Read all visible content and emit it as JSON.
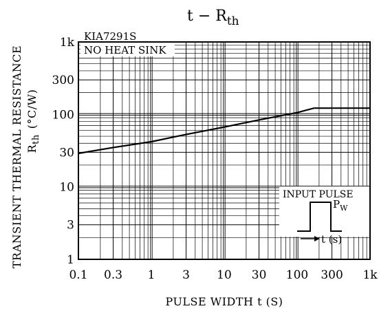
{
  "chart_data": {
    "type": "line",
    "title_main": "t  −  R",
    "title_sub": "th",
    "part_label": "KIA7291S",
    "condition_label": "NO  HEAT  SINK",
    "xlabel": "PULSE  WIDTH  t  (S)",
    "ylabel_line1": "TRANSIENT  THERMAL  RESISTANCE",
    "ylabel_line2_main": "R",
    "ylabel_line2_sub": "th",
    "ylabel_line2_unit": "(°C/W)",
    "x_scale": "log",
    "y_scale": "log",
    "xlim": [
      0.1,
      1000
    ],
    "ylim": [
      1,
      1000
    ],
    "grid": true,
    "x_ticks": [
      {
        "value": 0.1,
        "label": "0.1"
      },
      {
        "value": 0.3,
        "label": "0.3"
      },
      {
        "value": 1,
        "label": "1"
      },
      {
        "value": 3,
        "label": "3"
      },
      {
        "value": 10,
        "label": "10"
      },
      {
        "value": 30,
        "label": "30"
      },
      {
        "value": 100,
        "label": "100"
      },
      {
        "value": 300,
        "label": "300"
      },
      {
        "value": 1000,
        "label": "1k"
      }
    ],
    "y_ticks": [
      {
        "value": 1,
        "label": "1"
      },
      {
        "value": 3,
        "label": "3"
      },
      {
        "value": 10,
        "label": "10"
      },
      {
        "value": 30,
        "label": "30"
      },
      {
        "value": 100,
        "label": "100"
      },
      {
        "value": 300,
        "label": "300"
      },
      {
        "value": 1000,
        "label": "1k"
      }
    ],
    "series": [
      {
        "x": [
          0.1,
          0.3,
          1,
          3,
          10,
          30,
          100,
          170,
          1000
        ],
        "y": [
          29,
          35,
          42,
          53,
          67,
          84,
          106,
          122,
          122
        ]
      }
    ],
    "inset": {
      "title": "INPUT  PULSE",
      "pw_main": "P",
      "pw_sub": "W",
      "axis_label": "t  (s)"
    }
  }
}
